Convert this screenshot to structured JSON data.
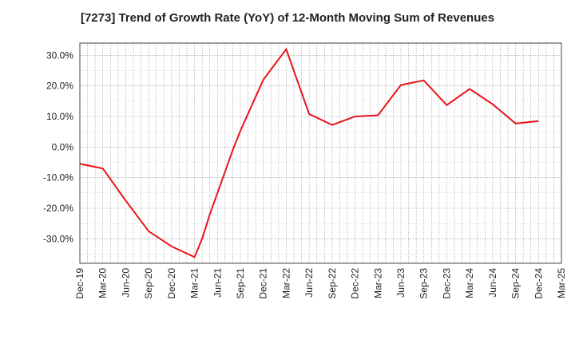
{
  "chart_data": {
    "type": "line",
    "title": "[7273]  Trend of Growth Rate (YoY) of 12-Month Moving Sum of Revenues",
    "xlabel": "",
    "ylabel": "",
    "x_ticks": [
      "Dec-19",
      "Mar-20",
      "Jun-20",
      "Sep-20",
      "Dec-20",
      "Mar-21",
      "Jun-21",
      "Sep-21",
      "Dec-21",
      "Mar-22",
      "Jun-22",
      "Sep-22",
      "Dec-22",
      "Mar-23",
      "Jun-23",
      "Sep-23",
      "Dec-23",
      "Mar-24",
      "Jun-24",
      "Sep-24",
      "Dec-24",
      "Mar-25"
    ],
    "y_ticks": [
      "30.0%",
      "20.0%",
      "10.0%",
      "0.0%",
      "-10.0%",
      "-20.0%",
      "-30.0%"
    ],
    "ylim": [
      -38,
      34
    ],
    "grid": true,
    "series": [
      {
        "color": "#e8141b",
        "x": [
          "Dec-19",
          "Mar-20",
          "Jun-20",
          "Sep-20",
          "Dec-20",
          "Mar-21",
          "Apr-21",
          "May-21",
          "Jun-21",
          "Jul-21",
          "Aug-21",
          "Sep-21",
          "Dec-21",
          "Mar-22",
          "Jun-22",
          "Sep-22",
          "Dec-22",
          "Mar-23",
          "Jun-23",
          "Sep-23",
          "Dec-23",
          "Mar-24",
          "Jun-24",
          "Sep-24",
          "Dec-24"
        ],
        "values": [
          -5.5,
          -7.0,
          -17.5,
          -27.5,
          -32.5,
          -36.0,
          -30.0,
          -22.0,
          -15.0,
          -8.0,
          -1.0,
          5.3,
          22.0,
          32.0,
          10.8,
          7.2,
          10.0,
          10.4,
          20.3,
          21.8,
          13.7,
          19.0,
          14.0,
          7.7,
          8.5
        ]
      }
    ]
  }
}
